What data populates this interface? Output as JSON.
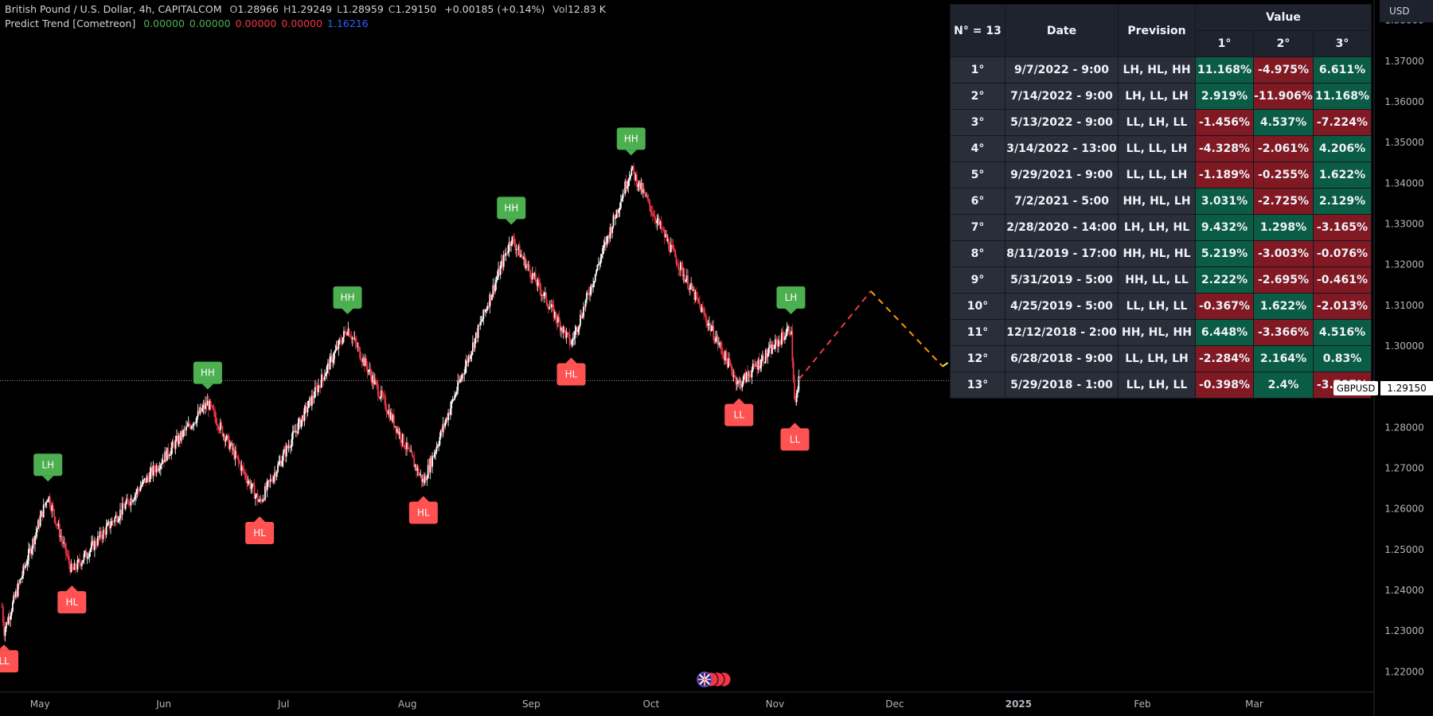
{
  "legend": {
    "symbol": "British Pound / U.S. Dollar, 4h, CAPITALCOM",
    "ohlc": [
      {
        "label": "O",
        "value": "1.28966"
      },
      {
        "label": "H",
        "value": "1.29249"
      },
      {
        "label": "L",
        "value": "1.28959"
      },
      {
        "label": "C",
        "value": "1.29150"
      }
    ],
    "change": "+0.00185 (+0.14%)",
    "vol_label": "Vol",
    "vol_value": "12.83 K",
    "indicator_name": "Predict Trend [Cometreon]",
    "indicator_values": [
      {
        "value": "0.00000",
        "color": "#4caf50"
      },
      {
        "value": "0.00000",
        "color": "#4caf50"
      },
      {
        "value": "0.00000",
        "color": "#f23645"
      },
      {
        "value": "0.00000",
        "color": "#f23645"
      },
      {
        "value": "1.16216",
        "color": "#2962ff"
      }
    ]
  },
  "currency_button": "USD",
  "price_axis": {
    "labels": [
      "1.38000",
      "1.37000",
      "1.36000",
      "1.35000",
      "1.34000",
      "1.33000",
      "1.32000",
      "1.31000",
      "1.30000",
      "1.29000",
      "1.28000",
      "1.27000",
      "1.26000",
      "1.25000",
      "1.24000",
      "1.23000",
      "1.22000"
    ],
    "last_price": "1.29150",
    "symbol_tag": "GBPUSD"
  },
  "time_axis": {
    "labels": [
      "May",
      "Jun",
      "Jul",
      "Aug",
      "Sep",
      "Oct",
      "Nov",
      "Dec",
      "2025",
      "Feb",
      "Mar"
    ]
  },
  "colors": {
    "up": "#ffffff",
    "down": "#f23645",
    "marker_high": "#4caf50",
    "marker_low": "#ff5252",
    "forecast_down": "#f23645",
    "forecast_mid": "#ff9800",
    "forecast_up": "#ffeb3b"
  },
  "chart_data": {
    "type": "candlestick",
    "x_range": [
      "2024-04-21",
      "2025-03-31"
    ],
    "ylim": [
      1.215,
      1.385
    ],
    "swing_points": [
      {
        "label": "LL",
        "date": "2024-04-22",
        "price": 1.23
      },
      {
        "label": "LH",
        "date": "2024-05-03",
        "price": 1.2634
      },
      {
        "label": "HL",
        "date": "2024-05-09",
        "price": 1.2445
      },
      {
        "label": "HH",
        "date": "2024-06-12",
        "price": 1.286
      },
      {
        "label": "HL",
        "date": "2024-06-25",
        "price": 1.2615
      },
      {
        "label": "HH",
        "date": "2024-07-17",
        "price": 1.3045
      },
      {
        "label": "HL",
        "date": "2024-08-05",
        "price": 1.2665
      },
      {
        "label": "HH",
        "date": "2024-08-27",
        "price": 1.3265
      },
      {
        "label": "HL",
        "date": "2024-09-11",
        "price": 1.3005
      },
      {
        "label": "HH",
        "date": "2024-09-26",
        "price": 1.3435
      },
      {
        "label": "LL",
        "date": "2024-10-23",
        "price": 1.2905
      },
      {
        "label": "LH",
        "date": "2024-11-05",
        "price": 1.3045
      },
      {
        "label": "LL",
        "date": "2024-11-06",
        "price": 1.2845
      }
    ],
    "forecast": [
      {
        "date": "2024-11-07",
        "price": 1.2918
      },
      {
        "date": "2024-11-25",
        "price": 1.3135
      },
      {
        "date": "2024-12-13",
        "price": 1.295
      },
      {
        "date": "2025-01-01",
        "price": 1.3085
      }
    ]
  },
  "table": {
    "header_count": "N° = 13",
    "header_date": "Date",
    "header_prevision": "Prevision",
    "header_value": "Value",
    "value_columns": [
      "1°",
      "2°",
      "3°"
    ],
    "rows": [
      {
        "n": "1°",
        "date": "9/7/2022 - 9:00",
        "prev": "LH, HL, HH",
        "v": [
          "11.168%",
          "-4.975%",
          "6.611%"
        ]
      },
      {
        "n": "2°",
        "date": "7/14/2022 - 9:00",
        "prev": "LH, LL, LH",
        "v": [
          "2.919%",
          "-11.906%",
          "11.168%"
        ]
      },
      {
        "n": "3°",
        "date": "5/13/2022 - 9:00",
        "prev": "LL, LH, LL",
        "v": [
          "-1.456%",
          "4.537%",
          "-7.224%"
        ]
      },
      {
        "n": "4°",
        "date": "3/14/2022 - 13:00",
        "prev": "LL, LL, LH",
        "v": [
          "-4.328%",
          "-2.061%",
          "4.206%"
        ]
      },
      {
        "n": "5°",
        "date": "9/29/2021 - 9:00",
        "prev": "LL, LL, LH",
        "v": [
          "-1.189%",
          "-0.255%",
          "1.622%"
        ]
      },
      {
        "n": "6°",
        "date": "7/2/2021 - 5:00",
        "prev": "HH, HL, LH",
        "v": [
          "3.031%",
          "-2.725%",
          "2.129%"
        ]
      },
      {
        "n": "7°",
        "date": "2/28/2020 - 14:00",
        "prev": "LH, LH, HL",
        "v": [
          "9.432%",
          "1.298%",
          "-3.165%"
        ]
      },
      {
        "n": "8°",
        "date": "8/11/2019 - 17:00",
        "prev": "HH, HL, HL",
        "v": [
          "5.219%",
          "-3.003%",
          "-0.076%"
        ]
      },
      {
        "n": "9°",
        "date": "5/31/2019 - 5:00",
        "prev": "HH, LL, LL",
        "v": [
          "2.222%",
          "-2.695%",
          "-0.461%"
        ]
      },
      {
        "n": "10°",
        "date": "4/25/2019 - 5:00",
        "prev": "LL, LH, LL",
        "v": [
          "-0.367%",
          "1.622%",
          "-2.013%"
        ]
      },
      {
        "n": "11°",
        "date": "12/12/2018 - 2:00",
        "prev": "HH, HL, HH",
        "v": [
          "6.448%",
          "-3.366%",
          "4.516%"
        ]
      },
      {
        "n": "12°",
        "date": "6/28/2018 - 9:00",
        "prev": "LL, LH, LH",
        "v": [
          "-2.284%",
          "2.164%",
          "0.83%"
        ]
      },
      {
        "n": "13°",
        "date": "5/29/2018 - 1:00",
        "prev": "LL, LH, LL",
        "v": [
          "-0.398%",
          "2.4%",
          "-3.787%"
        ]
      }
    ]
  }
}
